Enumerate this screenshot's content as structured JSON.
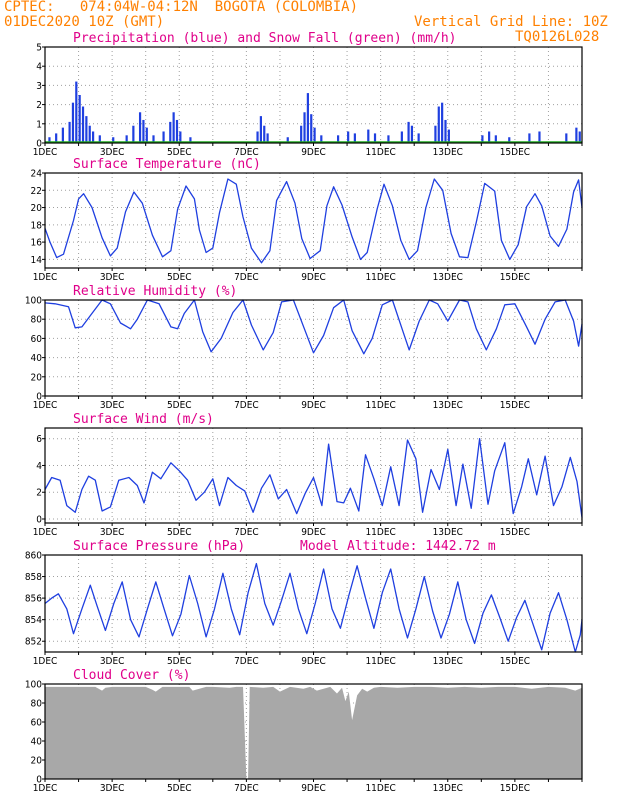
{
  "header": {
    "line1_left": "CPTEC:   074:04W-04:12N  BOGOTA (COLOMBIA)",
    "line2_left": "01DEC2020 10Z (GMT)",
    "line2_right": "Vertical Grid Line: 10Z",
    "line3_right": "TQ0126L028"
  },
  "chart_data": [
    {
      "type": "bar",
      "title": "Precipitation (blue) and Snow Fall (green) (mm/h)",
      "xticks": [
        "1DEC",
        "3DEC",
        "5DEC",
        "7DEC",
        "9DEC",
        "11DEC",
        "13DEC",
        "15DEC"
      ],
      "ylim": [
        0,
        5
      ],
      "yticks": [
        "0",
        "1",
        "2",
        "3",
        "4",
        "5"
      ],
      "series": [
        {
          "color": "#1f3fe0",
          "points": [
            [
              0.1,
              0.3
            ],
            [
              0.3,
              0.5
            ],
            [
              0.5,
              0.8
            ],
            [
              0.7,
              1.1
            ],
            [
              0.8,
              2.1
            ],
            [
              0.9,
              3.2
            ],
            [
              1.0,
              2.5
            ],
            [
              1.1,
              1.9
            ],
            [
              1.2,
              1.4
            ],
            [
              1.3,
              0.9
            ],
            [
              1.4,
              0.6
            ],
            [
              1.6,
              0.4
            ],
            [
              2.0,
              0.3
            ],
            [
              2.4,
              0.4
            ],
            [
              2.6,
              0.9
            ],
            [
              2.8,
              1.6
            ],
            [
              2.9,
              1.2
            ],
            [
              3.0,
              0.8
            ],
            [
              3.2,
              0.4
            ],
            [
              3.5,
              0.6
            ],
            [
              3.7,
              1.1
            ],
            [
              3.8,
              1.6
            ],
            [
              3.9,
              1.2
            ],
            [
              4.0,
              0.6
            ],
            [
              4.3,
              0.3
            ],
            [
              6.3,
              0.6
            ],
            [
              6.4,
              1.4
            ],
            [
              6.5,
              0.9
            ],
            [
              6.6,
              0.5
            ],
            [
              7.2,
              0.3
            ],
            [
              7.6,
              0.9
            ],
            [
              7.7,
              1.6
            ],
            [
              7.8,
              2.6
            ],
            [
              7.9,
              1.5
            ],
            [
              8.0,
              0.8
            ],
            [
              8.2,
              0.4
            ],
            [
              8.7,
              0.4
            ],
            [
              9.0,
              0.6
            ],
            [
              9.2,
              0.5
            ],
            [
              9.6,
              0.7
            ],
            [
              9.8,
              0.5
            ],
            [
              10.2,
              0.4
            ],
            [
              10.6,
              0.6
            ],
            [
              10.8,
              1.1
            ],
            [
              10.9,
              0.9
            ],
            [
              11.1,
              0.5
            ],
            [
              11.6,
              0.9
            ],
            [
              11.7,
              1.9
            ],
            [
              11.8,
              2.1
            ],
            [
              11.9,
              1.2
            ],
            [
              12.0,
              0.7
            ],
            [
              13.0,
              0.4
            ],
            [
              13.2,
              0.6
            ],
            [
              13.4,
              0.4
            ],
            [
              13.8,
              0.3
            ],
            [
              14.4,
              0.5
            ],
            [
              14.7,
              0.6
            ],
            [
              15.5,
              0.5
            ],
            [
              15.8,
              0.8
            ],
            [
              15.9,
              0.6
            ]
          ]
        }
      ]
    },
    {
      "type": "line",
      "title": "Surface Temperature (nC)",
      "xticks": [
        "1DEC",
        "3DEC",
        "5DEC",
        "7DEC",
        "9DEC",
        "11DEC",
        "13DEC",
        "15DEC"
      ],
      "ylim": [
        13,
        24
      ],
      "yticks": [
        "14",
        "16",
        "18",
        "20",
        "22",
        "24"
      ],
      "series": [
        {
          "color": "#1f3fe0",
          "x": [
            0,
            0.15,
            0.35,
            0.55,
            0.85,
            1.0,
            1.15,
            1.4,
            1.7,
            1.95,
            2.15,
            2.4,
            2.65,
            2.9,
            3.2,
            3.5,
            3.75,
            3.95,
            4.2,
            4.45,
            4.6,
            4.8,
            5.0,
            5.2,
            5.45,
            5.7,
            5.9,
            6.15,
            6.45,
            6.7,
            6.9,
            7.2,
            7.45,
            7.65,
            7.9,
            8.2,
            8.4,
            8.6,
            8.85,
            9.15,
            9.4,
            9.6,
            9.9,
            10.1,
            10.35,
            10.6,
            10.85,
            11.1,
            11.35,
            11.6,
            11.85,
            12.1,
            12.35,
            12.6,
            12.85,
            13.1,
            13.4,
            13.6,
            13.85,
            14.1,
            14.35,
            14.6,
            14.8,
            15.05,
            15.3,
            15.55,
            15.75,
            15.9,
            16.0
          ],
          "values": [
            17.6,
            16,
            14.2,
            14.6,
            18.5,
            21,
            21.6,
            20,
            16.5,
            14.4,
            15.3,
            19.5,
            21.8,
            20.5,
            16.8,
            14.3,
            15,
            19.8,
            22.5,
            21,
            17.4,
            14.8,
            15.3,
            19.4,
            23.3,
            22.7,
            18.9,
            15.3,
            13.6,
            15,
            20.8,
            23,
            20.5,
            16.4,
            14.1,
            15,
            20.2,
            22.4,
            20.3,
            16.6,
            14,
            14.8,
            19.9,
            22.7,
            20.2,
            16.2,
            14,
            15,
            20,
            23.3,
            22,
            17,
            14.3,
            14.2,
            18.3,
            22.8,
            21.9,
            16.2,
            14,
            15.7,
            20.1,
            21.6,
            20.2,
            16.7,
            15.5,
            17.5,
            21.8,
            23.2,
            20
          ]
        }
      ]
    },
    {
      "type": "line",
      "title": "Relative Humidity (%)",
      "xticks": [
        "1DEC",
        "3DEC",
        "5DEC",
        "7DEC",
        "9DEC",
        "11DEC",
        "13DEC",
        "15DEC"
      ],
      "ylim": [
        0,
        100
      ],
      "yticks": [
        "0",
        "20",
        "40",
        "60",
        "80",
        "100"
      ],
      "series": [
        {
          "color": "#1f3fe0",
          "x": [
            0,
            0.3,
            0.7,
            0.9,
            1.1,
            1.4,
            1.7,
            1.95,
            2.25,
            2.55,
            2.75,
            3.05,
            3.4,
            3.75,
            3.95,
            4.15,
            4.45,
            4.7,
            4.95,
            5.25,
            5.6,
            5.9,
            6.15,
            6.5,
            6.8,
            7.05,
            7.4,
            7.75,
            8.0,
            8.3,
            8.6,
            8.9,
            9.15,
            9.5,
            9.75,
            10.05,
            10.35,
            10.65,
            10.85,
            11.15,
            11.45,
            11.7,
            12.0,
            12.35,
            12.6,
            12.85,
            13.15,
            13.45,
            13.7,
            14.0,
            14.35,
            14.6,
            14.9,
            15.2,
            15.5,
            15.75,
            15.9,
            16.0
          ],
          "values": [
            97,
            96,
            93,
            71,
            72,
            86,
            100,
            96,
            76,
            70,
            80,
            100,
            96,
            72,
            70,
            86,
            100,
            67,
            46,
            60,
            87,
            100,
            74,
            48,
            66,
            98,
            100,
            68,
            45,
            63,
            92,
            100,
            68,
            44,
            60,
            95,
            100,
            69,
            48,
            78,
            100,
            96,
            78,
            100,
            98,
            70,
            48,
            70,
            95,
            96,
            72,
            54,
            80,
            98,
            100,
            78,
            52,
            75
          ]
        }
      ]
    },
    {
      "type": "line",
      "title": "Surface Wind (m/s)",
      "xticks": [
        "1DEC",
        "3DEC",
        "5DEC",
        "7DEC",
        "9DEC",
        "11DEC",
        "13DEC",
        "15DEC"
      ],
      "ylim": [
        -0.3,
        6.8
      ],
      "yticks": [
        "0",
        "2",
        "4",
        "6"
      ],
      "series": [
        {
          "color": "#1f3fe0",
          "x": [
            0,
            0.2,
            0.45,
            0.65,
            0.9,
            1.1,
            1.3,
            1.5,
            1.7,
            1.95,
            2.2,
            2.5,
            2.75,
            2.95,
            3.2,
            3.45,
            3.75,
            4.0,
            4.25,
            4.5,
            4.75,
            5.0,
            5.2,
            5.45,
            5.7,
            5.95,
            6.2,
            6.45,
            6.7,
            6.95,
            7.2,
            7.5,
            7.75,
            8.0,
            8.25,
            8.45,
            8.7,
            8.9,
            9.1,
            9.35,
            9.55,
            9.8,
            10.05,
            10.3,
            10.55,
            10.8,
            11.05,
            11.25,
            11.5,
            11.75,
            12.0,
            12.25,
            12.45,
            12.7,
            12.95,
            13.2,
            13.4,
            13.7,
            13.95,
            14.2,
            14.4,
            14.65,
            14.9,
            15.15,
            15.4,
            15.65,
            15.85,
            16.0
          ],
          "values": [
            2.2,
            3.1,
            2.9,
            1,
            0.5,
            2.2,
            3.2,
            2.9,
            0.6,
            0.9,
            2.9,
            3.1,
            2.5,
            1.2,
            3.5,
            3,
            4.2,
            3.6,
            2.9,
            1.4,
            2,
            3,
            1,
            3.1,
            2.5,
            2.1,
            0.5,
            2.3,
            3.3,
            1.5,
            2.2,
            0.4,
            1.9,
            3.1,
            1,
            5.6,
            1.3,
            1.2,
            2.3,
            0.6,
            4.8,
            3,
            1,
            3.9,
            1,
            5.9,
            4.5,
            0.5,
            3.7,
            2.2,
            5.2,
            1,
            4.1,
            0.8,
            6,
            1.1,
            3.6,
            5.7,
            0.4,
            2.4,
            4.5,
            1.8,
            4.7,
            1,
            2.4,
            4.6,
            2.8,
            0.1
          ]
        }
      ]
    },
    {
      "type": "line",
      "title": "Surface Pressure (hPa)",
      "annotation": "Model Altitude: 1442.72 m",
      "xticks": [
        "1DEC",
        "3DEC",
        "5DEC",
        "7DEC",
        "9DEC",
        "11DEC",
        "13DEC",
        "15DEC"
      ],
      "ylim": [
        851,
        860
      ],
      "yticks": [
        "852",
        "854",
        "856",
        "858",
        "860"
      ],
      "series": [
        {
          "color": "#1f3fe0",
          "x": [
            0,
            0.2,
            0.4,
            0.65,
            0.85,
            1.1,
            1.35,
            1.55,
            1.8,
            2.05,
            2.3,
            2.55,
            2.8,
            3.05,
            3.3,
            3.55,
            3.8,
            4.05,
            4.3,
            4.55,
            4.8,
            5.05,
            5.3,
            5.55,
            5.8,
            6.05,
            6.3,
            6.55,
            6.8,
            7.05,
            7.3,
            7.55,
            7.8,
            8.05,
            8.3,
            8.55,
            8.8,
            9.05,
            9.3,
            9.55,
            9.8,
            10.05,
            10.3,
            10.55,
            10.8,
            11.05,
            11.3,
            11.55,
            11.8,
            12.05,
            12.3,
            12.55,
            12.8,
            13.05,
            13.3,
            13.55,
            13.8,
            14.05,
            14.3,
            14.55,
            14.8,
            15.05,
            15.3,
            15.55,
            15.8,
            15.95,
            16.0
          ],
          "values": [
            855.5,
            856,
            856.4,
            855,
            852.7,
            855,
            857.2,
            855.3,
            853,
            855.5,
            857.5,
            854,
            852.4,
            855,
            857.5,
            855,
            852.5,
            854.5,
            858.1,
            855.5,
            852.4,
            855,
            858.3,
            855,
            852.6,
            856.5,
            859.2,
            855.5,
            853.5,
            855.8,
            858.3,
            855,
            852.7,
            855.5,
            858.7,
            855,
            853.2,
            856.2,
            859,
            856,
            853.2,
            856.5,
            858.7,
            855,
            852.3,
            855,
            858,
            854.8,
            852.3,
            854.5,
            857.5,
            854,
            851.8,
            854.6,
            856.3,
            854.2,
            852,
            854.2,
            855.8,
            853.5,
            851.2,
            854.6,
            856.5,
            854,
            851,
            852.6,
            854
          ]
        }
      ]
    },
    {
      "type": "area",
      "title": "Cloud Cover (%)",
      "xticks": [
        "1DEC",
        "3DEC",
        "5DEC",
        "7DEC",
        "9DEC",
        "11DEC",
        "13DEC",
        "15DEC"
      ],
      "ylim": [
        0,
        100
      ],
      "yticks": [
        "0",
        "20",
        "40",
        "60",
        "80",
        "100"
      ],
      "series": [
        {
          "color": "#a8a8a8",
          "x": [
            0,
            1.5,
            1.7,
            1.8,
            2.0,
            3.0,
            3.2,
            3.3,
            3.5,
            4.3,
            4.4,
            4.6,
            4.8,
            5.0,
            5.5,
            5.7,
            5.9,
            6.0,
            6.05,
            6.1,
            6.5,
            6.8,
            7.0,
            7.3,
            7.7,
            7.9,
            8.1,
            8.5,
            8.7,
            8.85,
            8.95,
            9.05,
            9.15,
            9.3,
            9.45,
            9.6,
            9.8,
            10.0,
            10.5,
            11.0,
            11.5,
            12.0,
            12.5,
            13.0,
            13.5,
            14.0,
            14.5,
            15.0,
            15.5,
            15.8,
            16.0
          ],
          "values": [
            97,
            97,
            93,
            96,
            97,
            97,
            94,
            92,
            97,
            97,
            93,
            95,
            97,
            97,
            96,
            97,
            97,
            0,
            0,
            97,
            96,
            97,
            92,
            97,
            95,
            97,
            93,
            97,
            90,
            96,
            82,
            92,
            62,
            88,
            95,
            92,
            96,
            97,
            96,
            97,
            97,
            96,
            97,
            96,
            97,
            97,
            95,
            97,
            96,
            93,
            96
          ]
        }
      ]
    }
  ]
}
